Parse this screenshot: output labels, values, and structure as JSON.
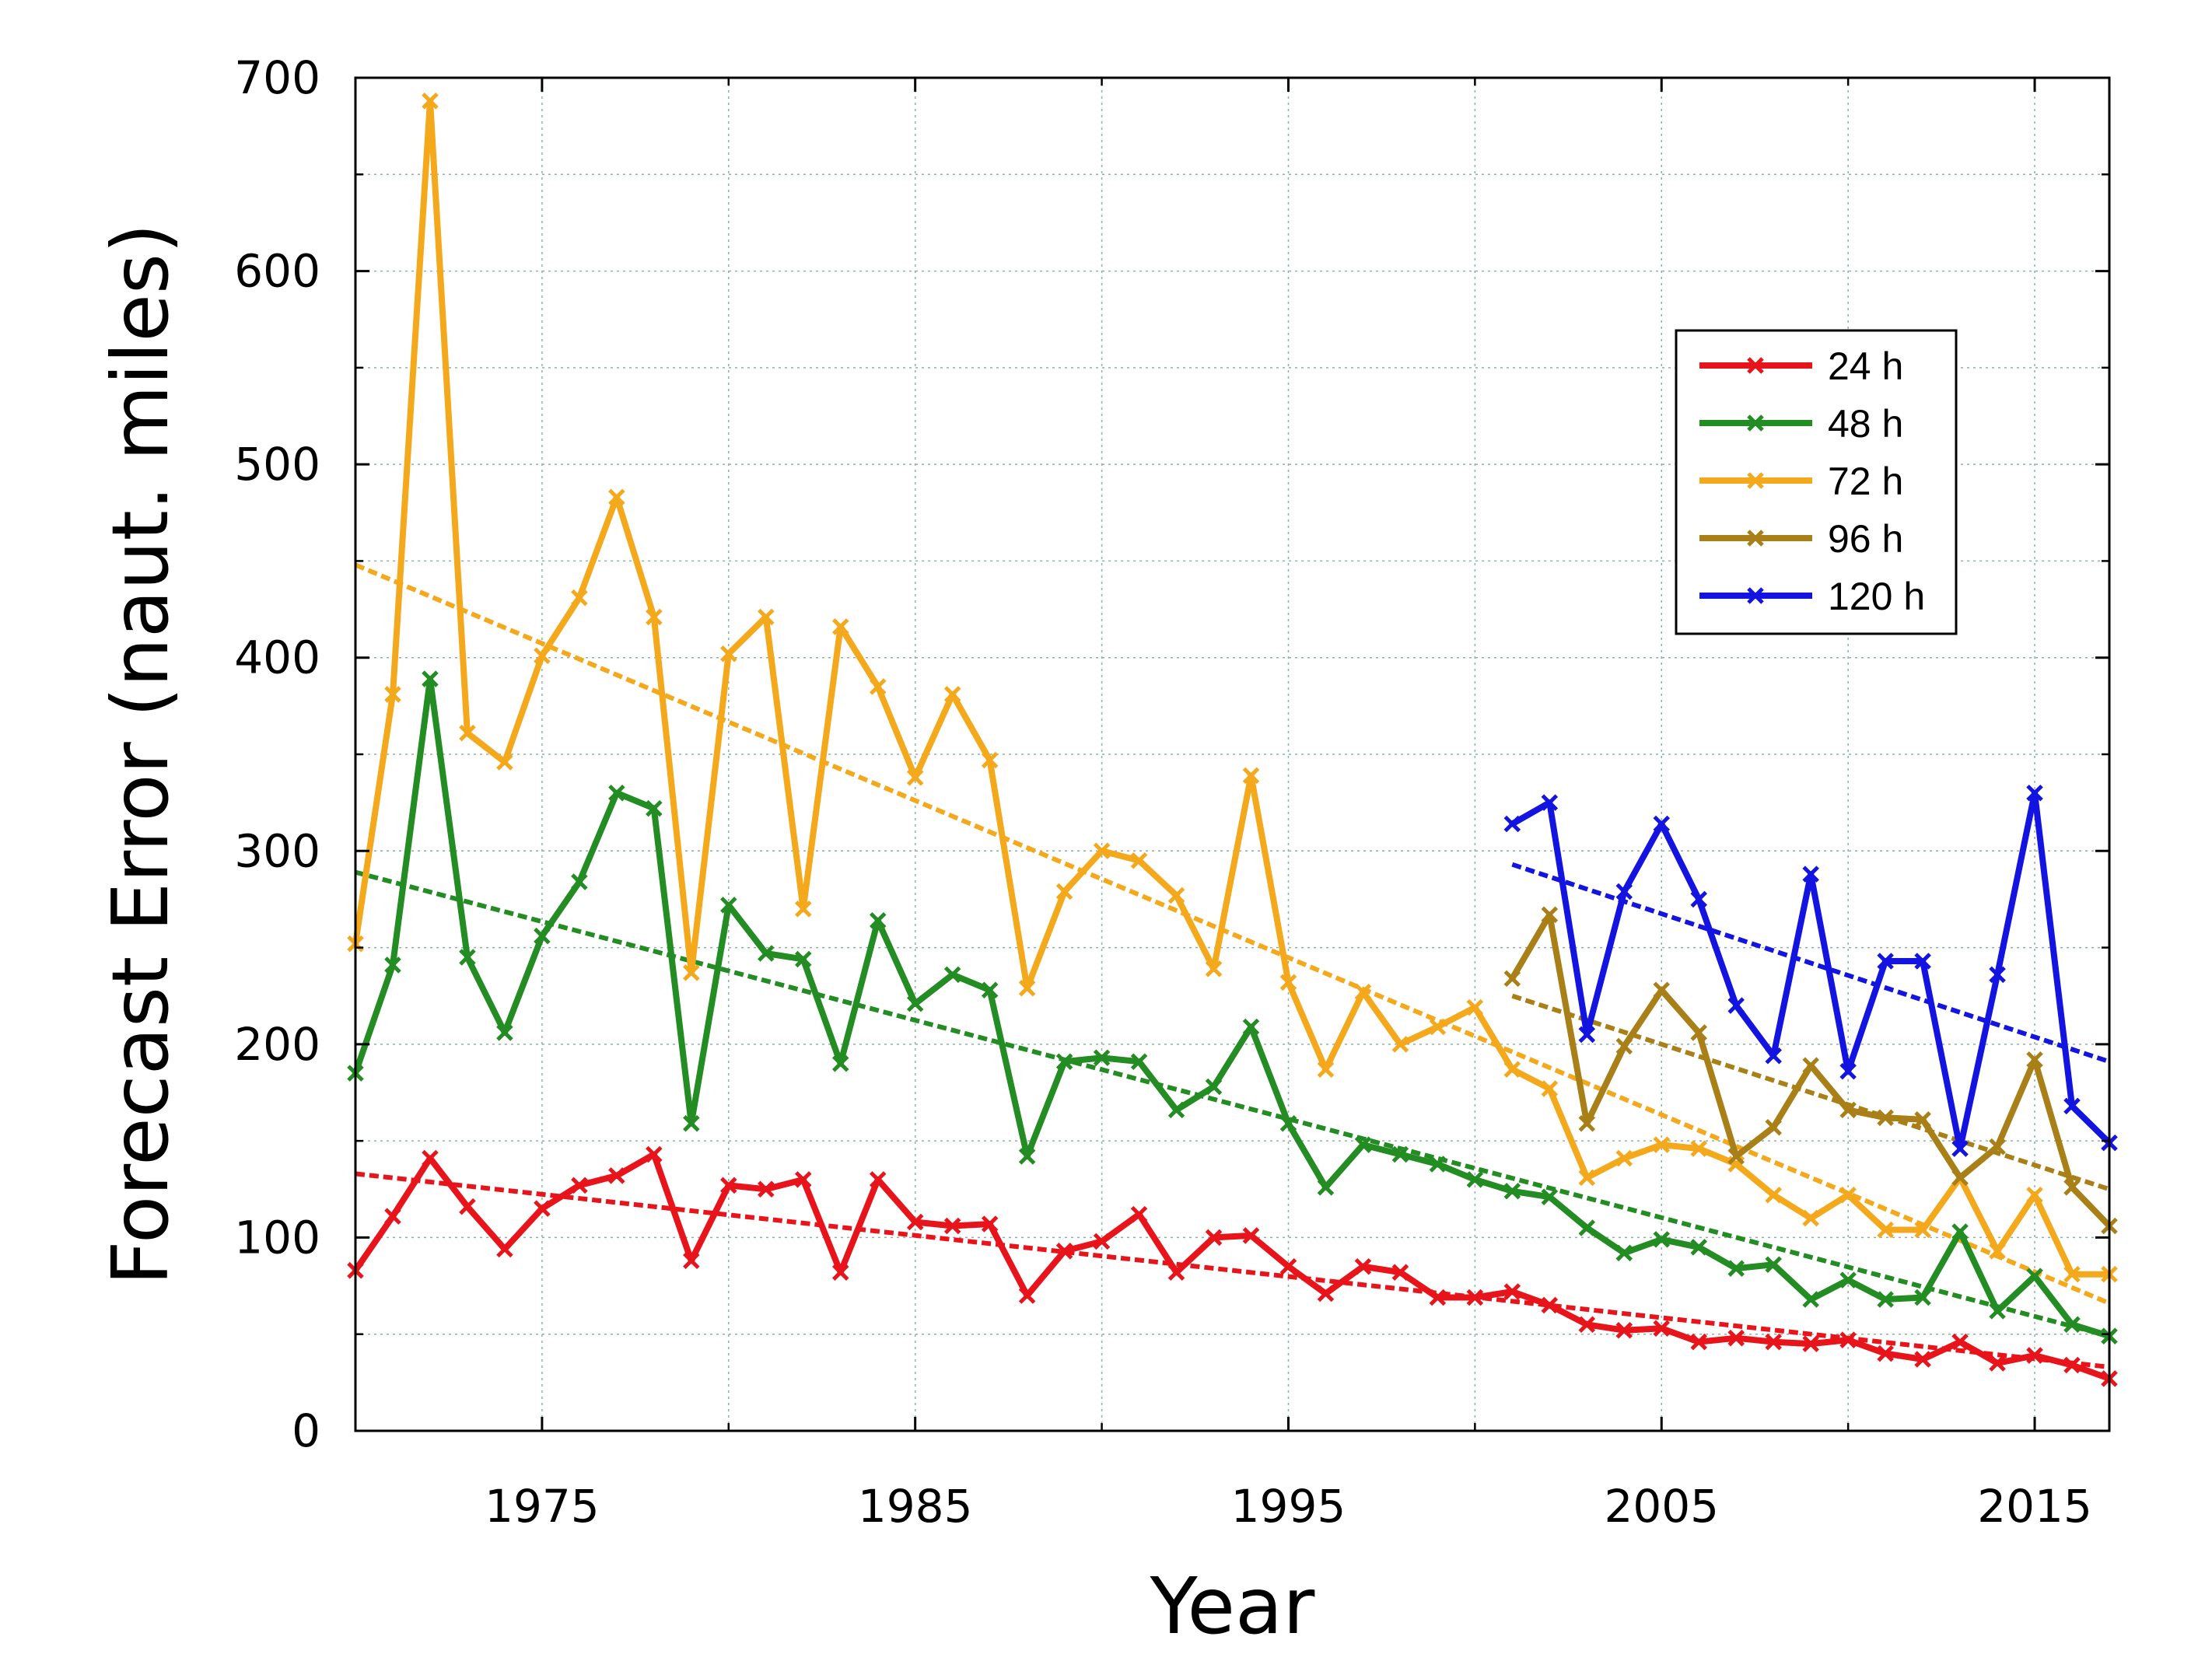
{
  "chart_data": {
    "type": "line",
    "title": "",
    "xlabel": "Year",
    "ylabel": "Forecast Error (naut. miles)",
    "xlim": [
      1970,
      2017
    ],
    "ylim": [
      0,
      700
    ],
    "xticks": [
      1975,
      1985,
      1995,
      2005,
      2015
    ],
    "yticks": [
      0,
      100,
      200,
      300,
      400,
      500,
      600,
      700
    ],
    "grid": true,
    "legend_position": "upper-right",
    "series": [
      {
        "name": "24 h",
        "color": "#e8141b",
        "x": [
          1970,
          1971,
          1972,
          1973,
          1974,
          1975,
          1976,
          1977,
          1978,
          1979,
          1980,
          1981,
          1982,
          1983,
          1984,
          1985,
          1986,
          1987,
          1988,
          1989,
          1990,
          1991,
          1992,
          1993,
          1994,
          1995,
          1996,
          1997,
          1998,
          1999,
          2000,
          2001,
          2002,
          2003,
          2004,
          2005,
          2006,
          2007,
          2008,
          2009,
          2010,
          2011,
          2012,
          2013,
          2014,
          2015,
          2016,
          2017
        ],
        "values": [
          83,
          111,
          141,
          116,
          94,
          115,
          127,
          132,
          143,
          88,
          127,
          125,
          130,
          82,
          130,
          108,
          106,
          107,
          70,
          93,
          98,
          112,
          82,
          100,
          101,
          85,
          71,
          85,
          82,
          69,
          69,
          72,
          65,
          55,
          52,
          53,
          46,
          48,
          46,
          45,
          47,
          40,
          37,
          46,
          35,
          39,
          34,
          27
        ],
        "trend": [
          133,
          33
        ]
      },
      {
        "name": "48 h",
        "color": "#238c23",
        "x": [
          1970,
          1971,
          1972,
          1973,
          1974,
          1975,
          1976,
          1977,
          1978,
          1979,
          1980,
          1981,
          1982,
          1983,
          1984,
          1985,
          1986,
          1987,
          1988,
          1989,
          1990,
          1991,
          1992,
          1993,
          1994,
          1995,
          1996,
          1997,
          1998,
          1999,
          2000,
          2001,
          2002,
          2003,
          2004,
          2005,
          2006,
          2007,
          2008,
          2009,
          2010,
          2011,
          2012,
          2013,
          2014,
          2015,
          2016,
          2017
        ],
        "values": [
          185,
          241,
          389,
          245,
          206,
          256,
          284,
          330,
          322,
          159,
          272,
          247,
          244,
          190,
          264,
          221,
          236,
          228,
          142,
          191,
          193,
          191,
          166,
          178,
          209,
          159,
          126,
          148,
          143,
          138,
          130,
          124,
          121,
          105,
          92,
          99,
          95,
          84,
          86,
          68,
          78,
          68,
          69,
          103,
          62,
          80,
          55,
          49
        ],
        "trend": [
          289,
          49
        ]
      },
      {
        "name": "72 h",
        "color": "#f4a81c",
        "x": [
          1970,
          1971,
          1972,
          1973,
          1974,
          1975,
          1976,
          1977,
          1978,
          1979,
          1980,
          1981,
          1982,
          1983,
          1984,
          1985,
          1986,
          1987,
          1988,
          1989,
          1990,
          1991,
          1992,
          1993,
          1994,
          1995,
          1996,
          1997,
          1998,
          1999,
          2000,
          2001,
          2002,
          2003,
          2004,
          2005,
          2006,
          2007,
          2008,
          2009,
          2010,
          2011,
          2012,
          2013,
          2014,
          2015,
          2016,
          2017
        ],
        "values": [
          252,
          381,
          688,
          361,
          346,
          401,
          431,
          483,
          421,
          237,
          402,
          421,
          270,
          416,
          385,
          338,
          381,
          347,
          229,
          279,
          300,
          295,
          277,
          239,
          339,
          232,
          187,
          227,
          200,
          209,
          219,
          187,
          177,
          131,
          141,
          148,
          146,
          138,
          122,
          110,
          122,
          104,
          104,
          131,
          93,
          122,
          81,
          81
        ],
        "trend": [
          448,
          66
        ]
      },
      {
        "name": "96 h",
        "color": "#a98018",
        "x": [
          2001,
          2002,
          2003,
          2004,
          2005,
          2006,
          2007,
          2008,
          2009,
          2010,
          2011,
          2012,
          2013,
          2014,
          2015,
          2016,
          2017
        ],
        "values": [
          234,
          267,
          159,
          199,
          228,
          206,
          142,
          157,
          189,
          166,
          162,
          161,
          131,
          147,
          192,
          126,
          106
        ],
        "trend": [
          225,
          125
        ]
      },
      {
        "name": "120 h",
        "color": "#1414e0",
        "x": [
          2001,
          2002,
          2003,
          2004,
          2005,
          2006,
          2007,
          2008,
          2009,
          2010,
          2011,
          2012,
          2013,
          2014,
          2015,
          2016,
          2017
        ],
        "values": [
          314,
          325,
          205,
          279,
          314,
          275,
          220,
          194,
          288,
          186,
          243,
          243,
          146,
          236,
          330,
          168,
          149
        ],
        "trend": [
          293,
          191
        ]
      }
    ]
  }
}
